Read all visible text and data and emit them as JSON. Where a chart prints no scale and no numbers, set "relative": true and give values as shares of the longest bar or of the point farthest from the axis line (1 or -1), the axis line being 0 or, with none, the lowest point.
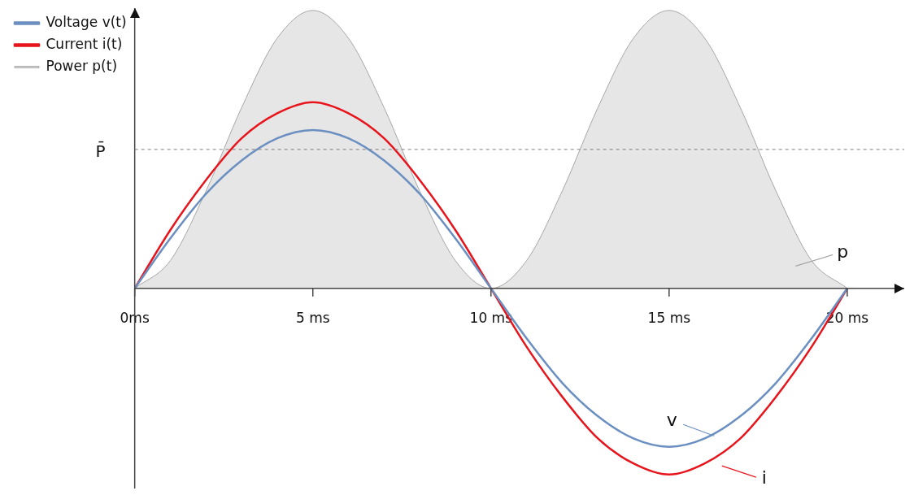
{
  "chart_data": {
    "type": "line",
    "relative": true,
    "x": [
      0,
      1,
      2,
      3,
      4,
      5,
      6,
      7,
      8,
      9,
      10,
      11,
      12,
      13,
      14,
      15,
      16,
      17,
      18,
      19,
      20
    ],
    "xlim": [
      0,
      21.6
    ],
    "xticks": [
      {
        "value": 0,
        "label": "0ms"
      },
      {
        "value": 5,
        "label": "5 ms"
      },
      {
        "value": 10,
        "label": "10 ms"
      },
      {
        "value": 15,
        "label": "15 ms"
      },
      {
        "value": 20,
        "label": "20 ms"
      }
    ],
    "series": [
      {
        "name": "Voltage v(t)",
        "color": "#6a8fc0",
        "values": [
          0,
          0.18,
          0.34,
          0.46,
          0.54,
          0.57,
          0.54,
          0.46,
          0.34,
          0.18,
          0,
          -0.18,
          -0.34,
          -0.46,
          -0.54,
          -0.57,
          -0.54,
          -0.46,
          -0.34,
          -0.18,
          0
        ]
      },
      {
        "name": "Current i(t)",
        "color": "#e8141c",
        "values": [
          0,
          0.21,
          0.39,
          0.54,
          0.63,
          0.67,
          0.63,
          0.54,
          0.39,
          0.21,
          0,
          -0.21,
          -0.39,
          -0.54,
          -0.63,
          -0.67,
          -0.63,
          -0.54,
          -0.39,
          -0.21,
          0
        ]
      },
      {
        "name": "Power p(t)",
        "type": "area",
        "color": "#a6a6a6",
        "values": [
          0,
          0.1,
          0.35,
          0.65,
          0.9,
          1,
          0.9,
          0.65,
          0.35,
          0.1,
          0,
          0.1,
          0.35,
          0.65,
          0.9,
          1,
          0.9,
          0.65,
          0.35,
          0.1,
          0
        ]
      }
    ],
    "ref_lines": [
      {
        "axis": "y",
        "value": 0.5,
        "label": "P̄",
        "color": "#7f7f7f",
        "line_style": "dashed"
      }
    ],
    "annotations": [
      "v",
      "i",
      "p"
    ],
    "legend": "top left",
    "grid": false
  }
}
